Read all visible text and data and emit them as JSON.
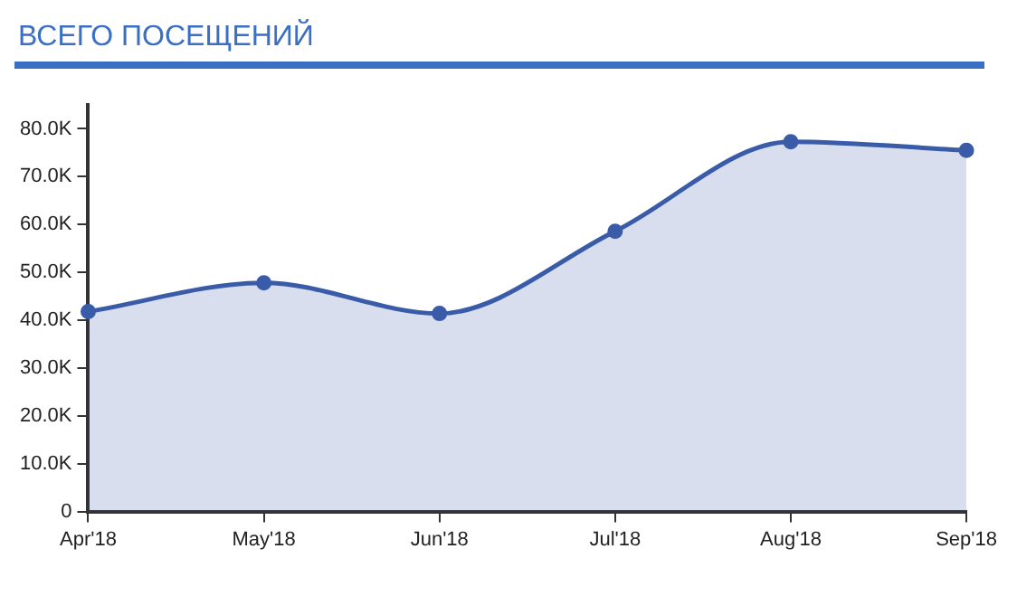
{
  "chart_data": {
    "type": "area",
    "title": "ВСЕГО ПОСЕЩЕНИЙ",
    "categories": [
      "Apr'18",
      "May'18",
      "Jun'18",
      "Jul'18",
      "Aug'18",
      "Sep'18"
    ],
    "series": [
      {
        "color": "#3a5ca8",
        "values": [
          41800,
          47800,
          41400,
          58600,
          77300,
          75500
        ]
      }
    ],
    "ylim": [
      0,
      85000
    ],
    "yticks": [
      0,
      {
        "value": 10000,
        "label": "10.0K"
      },
      {
        "value": 20000,
        "label": "20.0K"
      },
      {
        "value": 30000,
        "label": "30.0K"
      },
      {
        "value": 40000,
        "label": "40.0K"
      },
      {
        "value": 50000,
        "label": "50.0K"
      },
      {
        "value": 60000,
        "label": "60.0K"
      },
      {
        "value": 70000,
        "label": "70.0K"
      },
      {
        "value": 80000,
        "label": "80.0K"
      }
    ],
    "grid": false,
    "legend": false,
    "marker": "circle"
  }
}
